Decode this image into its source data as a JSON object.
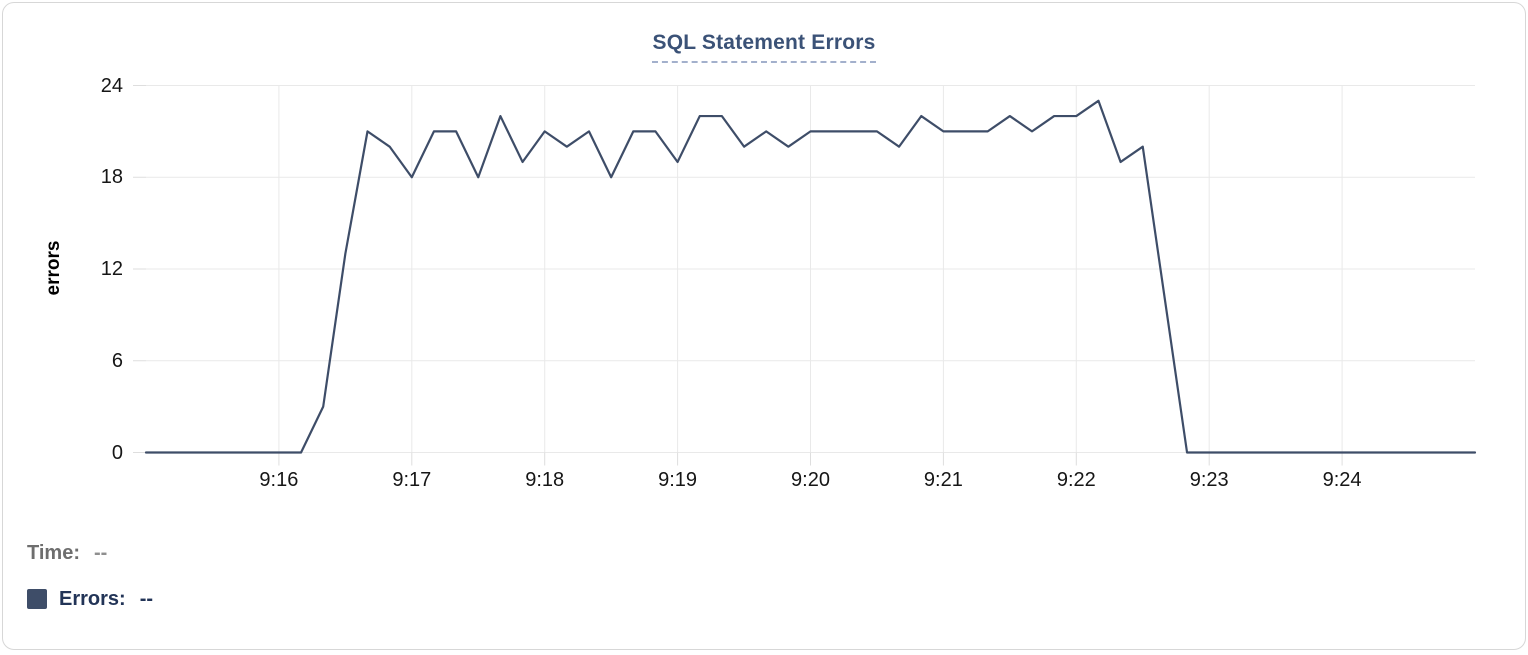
{
  "card": {
    "title": "SQL Statement Errors"
  },
  "colors": {
    "line": "#3e4d68",
    "title": "#3b5277",
    "grid": "#e9e9e9",
    "tick": "#dedede",
    "legend_time": "#6e6e6e",
    "legend_errors": "#223457"
  },
  "chart_data": {
    "type": "line",
    "title": "SQL Statement Errors",
    "xlabel": "",
    "ylabel": "errors",
    "ylim": [
      0,
      24
    ],
    "y_ticks": [
      0,
      6,
      12,
      18,
      24
    ],
    "grid": true,
    "legend_position": "bottom-left",
    "x_tick_labels": [
      "9:16",
      "9:17",
      "9:18",
      "9:19",
      "9:20",
      "9:21",
      "9:22",
      "9:23",
      "9:24"
    ],
    "x": [
      "9:15:00",
      "9:15:10",
      "9:15:20",
      "9:15:30",
      "9:15:40",
      "9:15:50",
      "9:16:00",
      "9:16:10",
      "9:16:20",
      "9:16:30",
      "9:16:40",
      "9:16:50",
      "9:17:00",
      "9:17:10",
      "9:17:20",
      "9:17:30",
      "9:17:40",
      "9:17:50",
      "9:18:00",
      "9:18:10",
      "9:18:20",
      "9:18:30",
      "9:18:40",
      "9:18:50",
      "9:19:00",
      "9:19:10",
      "9:19:20",
      "9:19:30",
      "9:19:40",
      "9:19:50",
      "9:20:00",
      "9:20:10",
      "9:20:20",
      "9:20:30",
      "9:20:40",
      "9:20:50",
      "9:21:00",
      "9:21:10",
      "9:21:20",
      "9:21:30",
      "9:21:40",
      "9:21:50",
      "9:22:00",
      "9:22:10",
      "9:22:20",
      "9:22:30",
      "9:22:40",
      "9:22:50",
      "9:23:00",
      "9:23:10",
      "9:23:20",
      "9:23:30",
      "9:23:40",
      "9:23:50",
      "9:24:00",
      "9:24:10",
      "9:24:20",
      "9:24:30",
      "9:24:40",
      "9:24:50",
      "9:25:00"
    ],
    "series": [
      {
        "name": "Errors",
        "color": "#3e4d68",
        "values": [
          0,
          0,
          0,
          0,
          0,
          0,
          0,
          0,
          3,
          13,
          21,
          20,
          18,
          21,
          21,
          18,
          22,
          19,
          21,
          20,
          21,
          18,
          21,
          21,
          19,
          22,
          22,
          20,
          21,
          20,
          21,
          21,
          21,
          21,
          20,
          22,
          21,
          21,
          21,
          22,
          21,
          22,
          22,
          23,
          19,
          20,
          10,
          0,
          0,
          0,
          0,
          0,
          0,
          0,
          0,
          0,
          0,
          0,
          0,
          0,
          0
        ]
      }
    ]
  },
  "legend": {
    "time_label": "Time:",
    "time_value": "--",
    "errors_label": "Errors:",
    "errors_value": "--",
    "marker_color": "#3e4d68"
  }
}
